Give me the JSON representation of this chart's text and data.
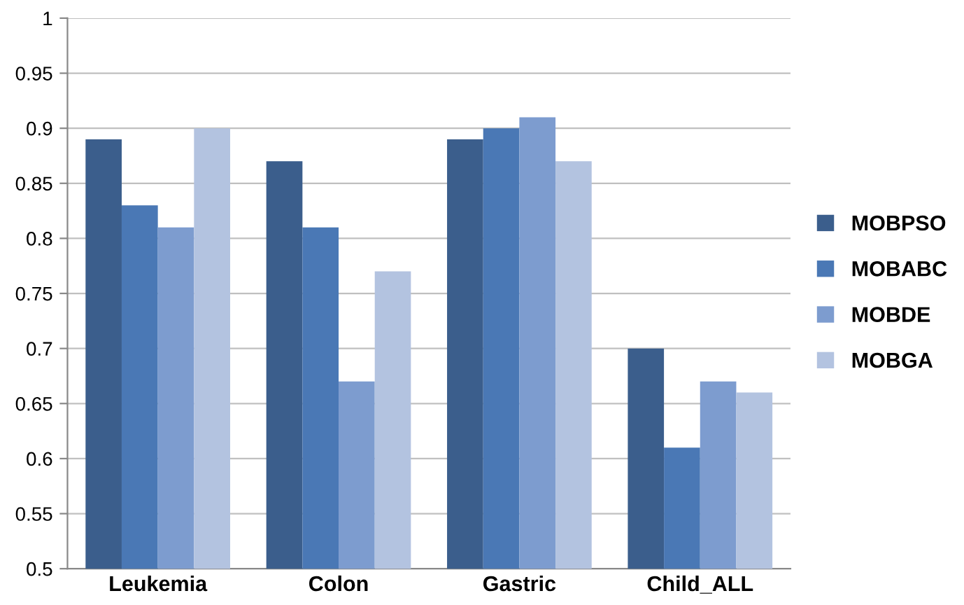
{
  "chart_data": {
    "type": "bar",
    "categories": [
      "Leukemia",
      "Colon",
      "Gastric",
      "Child_ALL"
    ],
    "series": [
      {
        "name": "MOBPSO",
        "color": "#3b5e8c",
        "values": [
          0.89,
          0.87,
          0.89,
          0.7
        ]
      },
      {
        "name": "MOBABC",
        "color": "#4a78b5",
        "values": [
          0.83,
          0.81,
          0.9,
          0.61
        ]
      },
      {
        "name": "MOBDE",
        "color": "#7d9ccf",
        "values": [
          0.81,
          0.67,
          0.91,
          0.67
        ]
      },
      {
        "name": "MOBGA",
        "color": "#b3c3e0",
        "values": [
          0.9,
          0.77,
          0.87,
          0.66
        ]
      }
    ],
    "ylim": [
      0.5,
      1
    ],
    "yticks": [
      {
        "value": 0.5,
        "label": "0.5"
      },
      {
        "value": 0.55,
        "label": "0.55"
      },
      {
        "value": 0.6,
        "label": "0.6"
      },
      {
        "value": 0.65,
        "label": "0.65"
      },
      {
        "value": 0.7,
        "label": "0.7"
      },
      {
        "value": 0.75,
        "label": "0.75"
      },
      {
        "value": 0.8,
        "label": "0.8"
      },
      {
        "value": 0.85,
        "label": "0.85"
      },
      {
        "value": 0.9,
        "label": "0.9"
      },
      {
        "value": 0.95,
        "label": "0.95"
      },
      {
        "value": 1,
        "label": "1"
      }
    ],
    "grid": "y",
    "legend": "right"
  }
}
